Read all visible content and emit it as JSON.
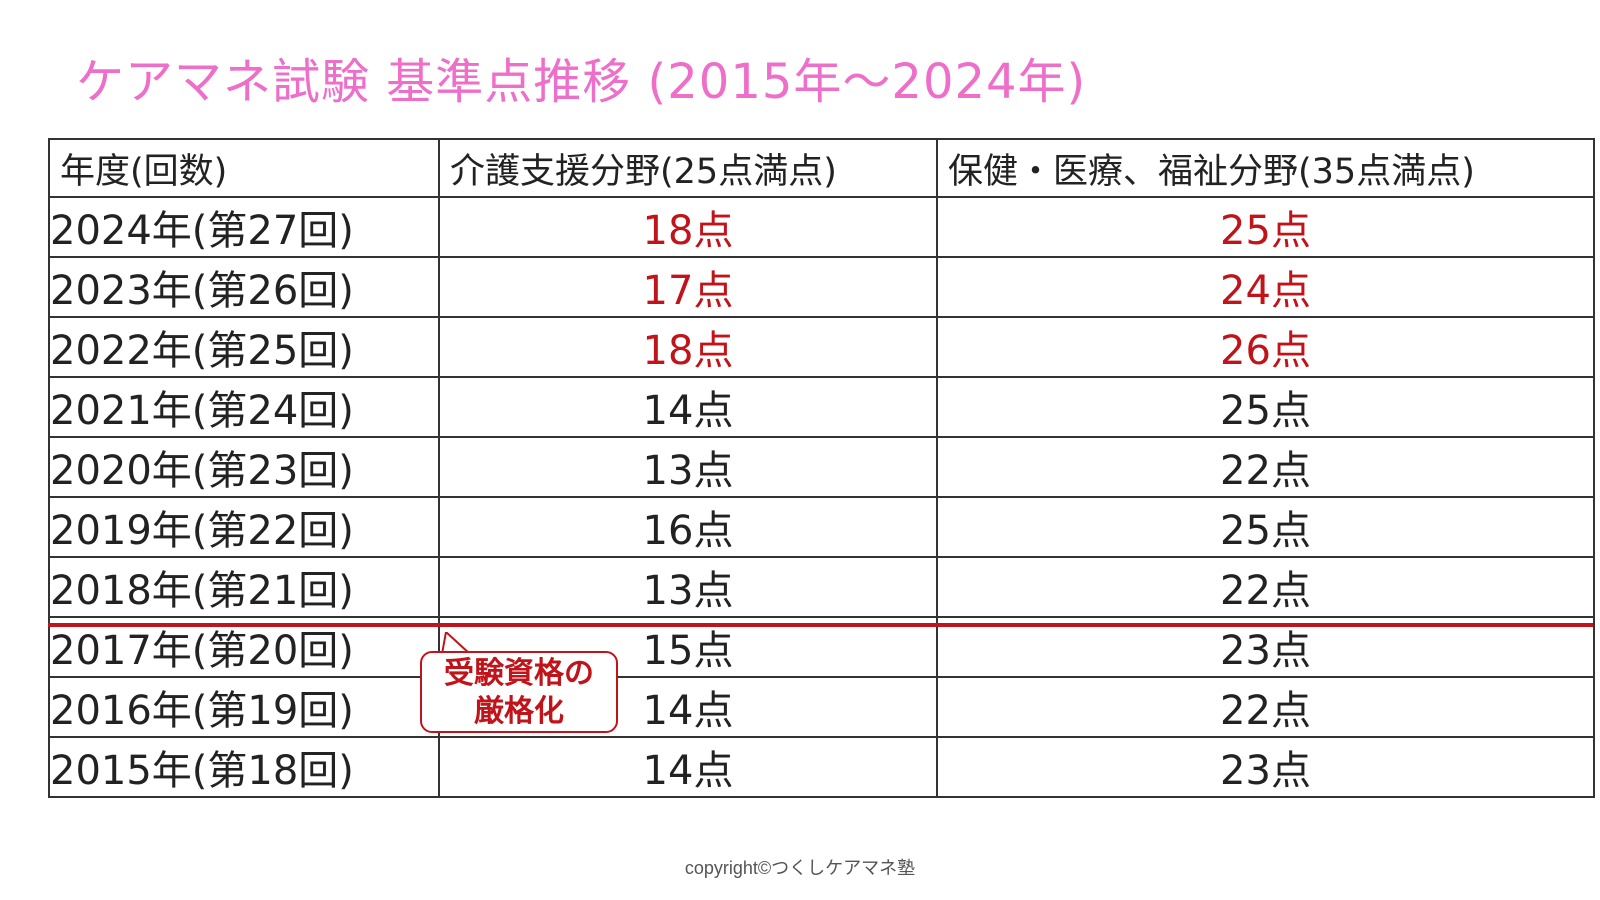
{
  "title": "ケアマネ試験 基準点推移 (2015年～2024年)",
  "table": {
    "headers": [
      "年度(回数)",
      "介護支援分野(25点満点)",
      "保健・医療、福祉分野(35点満点)"
    ],
    "rows": [
      {
        "year": "2024年(第27回)",
        "care": "18点",
        "medical": "25点",
        "highlight": true
      },
      {
        "year": "2023年(第26回)",
        "care": "17点",
        "medical": "24点",
        "highlight": true
      },
      {
        "year": "2022年(第25回)",
        "care": "18点",
        "medical": "26点",
        "highlight": true
      },
      {
        "year": "2021年(第24回)",
        "care": "14点",
        "medical": "25点",
        "highlight": false
      },
      {
        "year": "2020年(第23回)",
        "care": "13点",
        "medical": "22点",
        "highlight": false
      },
      {
        "year": "2019年(第22回)",
        "care": "16点",
        "medical": "25点",
        "highlight": false
      },
      {
        "year": "2018年(第21回)",
        "care": "13点",
        "medical": "22点",
        "highlight": false
      },
      {
        "year": "2017年(第20回)",
        "care": "15点",
        "medical": "23点",
        "highlight": false
      },
      {
        "year": "2016年(第19回)",
        "care": "14点",
        "medical": "22点",
        "highlight": false
      },
      {
        "year": "2015年(第18回)",
        "care": "14点",
        "medical": "23点",
        "highlight": false
      }
    ]
  },
  "callout": {
    "line1": "受験資格の",
    "line2": "厳格化"
  },
  "copyright": "copyright©つくしケアマネ塾",
  "colors": {
    "title": "#ee6fc9",
    "highlight": "#c0141a",
    "divider": "#c0141a",
    "border": "#333333"
  }
}
